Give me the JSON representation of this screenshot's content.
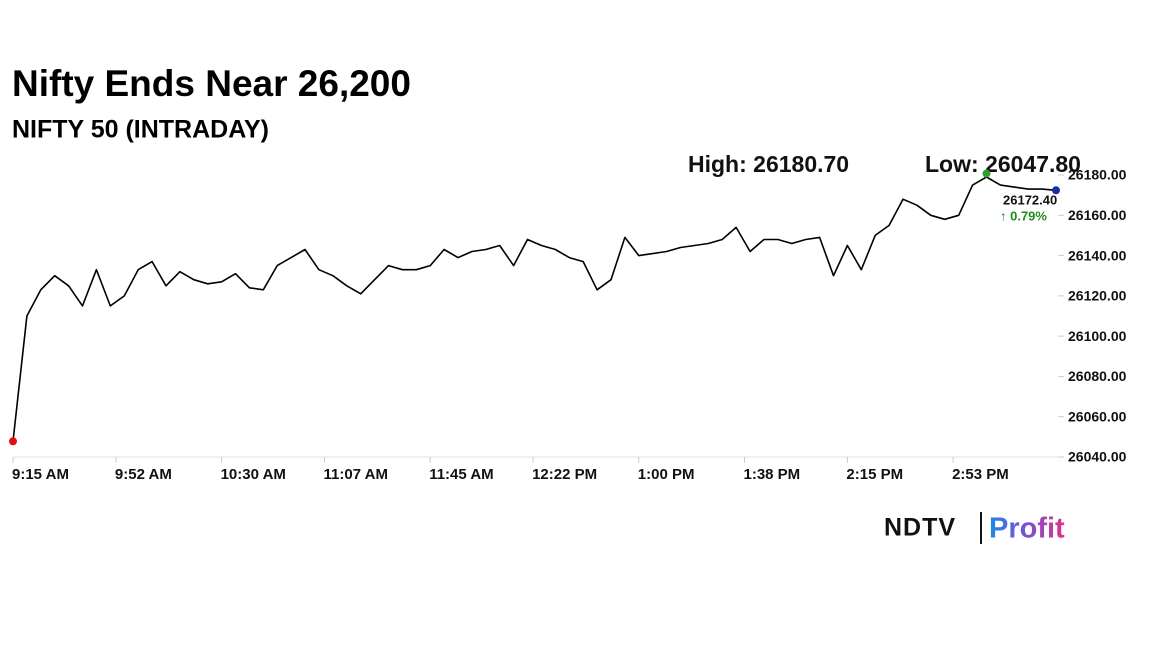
{
  "chart_data": {
    "type": "line",
    "title": "Nifty Ends Near 26,200",
    "subtitle": "NIFTY 50 (INTRADAY)",
    "x": [
      "9:15 AM",
      "9:20 AM",
      "9:25 AM",
      "9:30 AM",
      "9:35 AM",
      "9:40 AM",
      "9:45 AM",
      "9:50 AM",
      "9:55 AM",
      "10:00 AM",
      "10:05 AM",
      "10:10 AM",
      "10:15 AM",
      "10:20 AM",
      "10:25 AM",
      "10:30 AM",
      "10:35 AM",
      "10:40 AM",
      "10:45 AM",
      "10:50 AM",
      "10:55 AM",
      "11:00 AM",
      "11:05 AM",
      "11:10 AM",
      "11:15 AM",
      "11:20 AM",
      "11:25 AM",
      "11:30 AM",
      "11:35 AM",
      "11:40 AM",
      "11:45 AM",
      "11:50 AM",
      "11:55 AM",
      "12:00 PM",
      "12:05 PM",
      "12:10 PM",
      "12:15 PM",
      "12:20 PM",
      "12:25 PM",
      "12:30 PM",
      "12:35 PM",
      "12:40 PM",
      "12:45 PM",
      "12:50 PM",
      "12:55 PM",
      "1:00 PM",
      "1:05 PM",
      "1:10 PM",
      "1:15 PM",
      "1:20 PM",
      "1:25 PM",
      "1:30 PM",
      "1:35 PM",
      "1:40 PM",
      "1:45 PM",
      "1:50 PM",
      "1:55 PM",
      "2:00 PM",
      "2:05 PM",
      "2:10 PM",
      "2:15 PM",
      "2:20 PM",
      "2:25 PM",
      "2:30 PM",
      "2:35 PM",
      "2:40 PM",
      "2:45 PM",
      "2:50 PM",
      "2:55 PM",
      "3:00 PM",
      "3:05 PM",
      "3:10 PM",
      "3:15 PM",
      "3:20 PM",
      "3:25 PM",
      "3:30 PM"
    ],
    "values": [
      26047.8,
      26110,
      26123,
      26130,
      26125,
      26115,
      26133,
      26115,
      26120,
      26133,
      26137,
      26125,
      26132,
      26128,
      26126,
      26127,
      26131,
      26124,
      26123,
      26135,
      26139,
      26143,
      26133,
      26130,
      26125,
      26121,
      26128,
      26135,
      26133,
      26133,
      26135,
      26143,
      26139,
      26142,
      26143,
      26145,
      26135,
      26148,
      26145,
      26143,
      26139,
      26137,
      26123,
      26128,
      26149,
      26140,
      26141,
      26142,
      26144,
      26145,
      26146,
      26148,
      26154,
      26142,
      26148,
      26148,
      26146,
      26148,
      26149,
      26130,
      26145,
      26133,
      26150,
      26155,
      26168,
      26165,
      26160,
      26158,
      26160,
      26175,
      26179,
      26175,
      26174,
      26173,
      26173,
      26172.4
    ],
    "color": "#000000",
    "xlim": [
      "9:15 AM",
      "3:30 PM"
    ],
    "xticks": [
      "9:15 AM",
      "9:52 AM",
      "10:30 AM",
      "11:07 AM",
      "11:45 AM",
      "12:22 PM",
      "1:00 PM",
      "1:38 PM",
      "2:15 PM",
      "2:53 PM"
    ],
    "ylim": [
      26040,
      26180
    ],
    "yticks": [
      {
        "value": 26040,
        "label": "26040.00"
      },
      {
        "value": 26060,
        "label": "26060.00"
      },
      {
        "value": 26080,
        "label": "26080.00"
      },
      {
        "value": 26100,
        "label": "26100.00"
      },
      {
        "value": 26120,
        "label": "26120.00"
      },
      {
        "value": 26140,
        "label": "26140.00"
      },
      {
        "value": 26160,
        "label": "26160.00"
      },
      {
        "value": 26180,
        "label": "26180.00"
      }
    ],
    "high": {
      "x": "3:05 PM",
      "value": 26180.7,
      "label": "High: 26180.70",
      "color": "#2e9e2e"
    },
    "low": {
      "x": "9:15 AM",
      "value": 26047.8,
      "label": "Low: 26047.80",
      "color": "#e01010"
    },
    "close": {
      "x": "3:30 PM",
      "value": 26172.4,
      "label": "26172.40",
      "change": "↑ 0.79%",
      "color": "#1a2aa8",
      "change_color": "#1f8a1f"
    },
    "brand": {
      "left": "NDTV",
      "right": "Profit"
    }
  }
}
